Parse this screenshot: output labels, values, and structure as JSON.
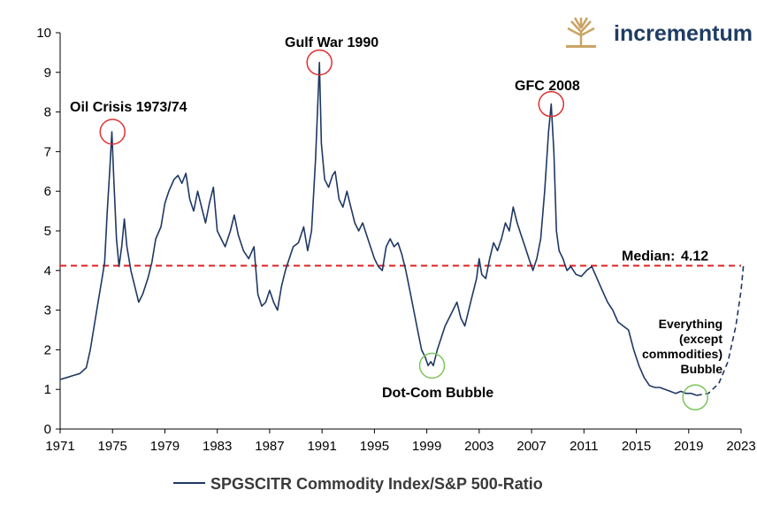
{
  "brand": {
    "name": "incrementum",
    "name_color": "#1f3c63",
    "logo_color": "#c9a464",
    "logo_icon": "tree-logo-icon"
  },
  "chart_data": {
    "type": "line",
    "title": "",
    "xlabel": "",
    "ylabel": "",
    "xlim": [
      1971,
      2023
    ],
    "ylim": [
      0,
      10
    ],
    "grid": false,
    "legend_position": "bottom",
    "x_ticks": [
      "1971",
      "1975",
      "1979",
      "1983",
      "1987",
      "1991",
      "1995",
      "1999",
      "2003",
      "2007",
      "2011",
      "2015",
      "2019",
      "2023"
    ],
    "y_ticks": [
      "0",
      "1",
      "2",
      "3",
      "4",
      "5",
      "6",
      "7",
      "8",
      "9",
      "10"
    ],
    "series": [
      {
        "name": "SPGSCITR Commodity Index/S&P 500-Ratio",
        "color": "#1f3864",
        "points": [
          [
            1971.0,
            1.25
          ],
          [
            1971.5,
            1.3
          ],
          [
            1972.0,
            1.35
          ],
          [
            1972.5,
            1.4
          ],
          [
            1973.0,
            1.55
          ],
          [
            1973.3,
            2.0
          ],
          [
            1973.6,
            2.6
          ],
          [
            1973.9,
            3.2
          ],
          [
            1974.2,
            3.8
          ],
          [
            1974.4,
            4.2
          ],
          [
            1974.6,
            5.5
          ],
          [
            1974.8,
            6.6
          ],
          [
            1974.95,
            7.5
          ],
          [
            1975.1,
            6.3
          ],
          [
            1975.3,
            4.8
          ],
          [
            1975.5,
            4.1
          ],
          [
            1975.7,
            4.6
          ],
          [
            1975.9,
            5.3
          ],
          [
            1976.1,
            4.6
          ],
          [
            1976.4,
            4.0
          ],
          [
            1976.7,
            3.6
          ],
          [
            1977.0,
            3.2
          ],
          [
            1977.3,
            3.4
          ],
          [
            1977.7,
            3.8
          ],
          [
            1978.0,
            4.2
          ],
          [
            1978.3,
            4.8
          ],
          [
            1978.7,
            5.1
          ],
          [
            1979.0,
            5.7
          ],
          [
            1979.3,
            6.0
          ],
          [
            1979.7,
            6.3
          ],
          [
            1980.0,
            6.4
          ],
          [
            1980.3,
            6.2
          ],
          [
            1980.6,
            6.45
          ],
          [
            1980.9,
            5.8
          ],
          [
            1981.2,
            5.5
          ],
          [
            1981.5,
            6.0
          ],
          [
            1981.8,
            5.6
          ],
          [
            1982.1,
            5.2
          ],
          [
            1982.4,
            5.7
          ],
          [
            1982.7,
            6.1
          ],
          [
            1983.0,
            5.0
          ],
          [
            1983.3,
            4.8
          ],
          [
            1983.6,
            4.6
          ],
          [
            1984.0,
            5.0
          ],
          [
            1984.3,
            5.4
          ],
          [
            1984.6,
            4.9
          ],
          [
            1985.0,
            4.5
          ],
          [
            1985.4,
            4.3
          ],
          [
            1985.8,
            4.6
          ],
          [
            1986.1,
            3.4
          ],
          [
            1986.4,
            3.1
          ],
          [
            1986.7,
            3.2
          ],
          [
            1987.0,
            3.5
          ],
          [
            1987.3,
            3.2
          ],
          [
            1987.6,
            3.0
          ],
          [
            1987.9,
            3.6
          ],
          [
            1988.2,
            4.0
          ],
          [
            1988.5,
            4.3
          ],
          [
            1988.8,
            4.6
          ],
          [
            1989.2,
            4.7
          ],
          [
            1989.6,
            5.1
          ],
          [
            1989.9,
            4.5
          ],
          [
            1990.2,
            5.0
          ],
          [
            1990.5,
            6.8
          ],
          [
            1990.7,
            8.4
          ],
          [
            1990.8,
            9.25
          ],
          [
            1990.95,
            7.2
          ],
          [
            1991.2,
            6.3
          ],
          [
            1991.5,
            6.1
          ],
          [
            1991.8,
            6.4
          ],
          [
            1992.0,
            6.5
          ],
          [
            1992.3,
            5.8
          ],
          [
            1992.6,
            5.6
          ],
          [
            1992.9,
            6.0
          ],
          [
            1993.2,
            5.6
          ],
          [
            1993.5,
            5.2
          ],
          [
            1993.8,
            5.0
          ],
          [
            1994.1,
            5.2
          ],
          [
            1994.4,
            4.9
          ],
          [
            1994.7,
            4.6
          ],
          [
            1995.0,
            4.3
          ],
          [
            1995.3,
            4.1
          ],
          [
            1995.6,
            4.0
          ],
          [
            1995.9,
            4.6
          ],
          [
            1996.2,
            4.8
          ],
          [
            1996.5,
            4.6
          ],
          [
            1996.8,
            4.7
          ],
          [
            1997.1,
            4.4
          ],
          [
            1997.4,
            4.0
          ],
          [
            1997.7,
            3.5
          ],
          [
            1998.0,
            3.0
          ],
          [
            1998.3,
            2.5
          ],
          [
            1998.6,
            2.0
          ],
          [
            1998.9,
            1.8
          ],
          [
            1999.1,
            1.6
          ],
          [
            1999.3,
            1.7
          ],
          [
            1999.5,
            1.6
          ],
          [
            1999.8,
            2.0
          ],
          [
            2000.1,
            2.3
          ],
          [
            2000.4,
            2.6
          ],
          [
            2000.7,
            2.8
          ],
          [
            2001.0,
            3.0
          ],
          [
            2001.3,
            3.2
          ],
          [
            2001.6,
            2.8
          ],
          [
            2001.9,
            2.6
          ],
          [
            2002.2,
            3.0
          ],
          [
            2002.5,
            3.4
          ],
          [
            2002.8,
            3.8
          ],
          [
            2003.0,
            4.3
          ],
          [
            2003.2,
            3.9
          ],
          [
            2003.5,
            3.8
          ],
          [
            2003.8,
            4.3
          ],
          [
            2004.1,
            4.7
          ],
          [
            2004.4,
            4.5
          ],
          [
            2004.7,
            4.8
          ],
          [
            2005.0,
            5.2
          ],
          [
            2005.3,
            5.0
          ],
          [
            2005.6,
            5.6
          ],
          [
            2005.9,
            5.2
          ],
          [
            2006.2,
            4.9
          ],
          [
            2006.5,
            4.6
          ],
          [
            2006.8,
            4.3
          ],
          [
            2007.1,
            4.0
          ],
          [
            2007.4,
            4.3
          ],
          [
            2007.7,
            4.8
          ],
          [
            2008.0,
            6.0
          ],
          [
            2008.3,
            7.5
          ],
          [
            2008.5,
            8.2
          ],
          [
            2008.7,
            7.0
          ],
          [
            2008.9,
            5.0
          ],
          [
            2009.1,
            4.5
          ],
          [
            2009.4,
            4.3
          ],
          [
            2009.7,
            4.0
          ],
          [
            2010.0,
            4.1
          ],
          [
            2010.4,
            3.9
          ],
          [
            2010.8,
            3.85
          ],
          [
            2011.2,
            4.0
          ],
          [
            2011.6,
            4.1
          ],
          [
            2012.0,
            3.8
          ],
          [
            2012.4,
            3.5
          ],
          [
            2012.8,
            3.2
          ],
          [
            2013.2,
            3.0
          ],
          [
            2013.6,
            2.7
          ],
          [
            2014.0,
            2.6
          ],
          [
            2014.4,
            2.5
          ],
          [
            2014.8,
            2.0
          ],
          [
            2015.2,
            1.6
          ],
          [
            2015.6,
            1.3
          ],
          [
            2016.0,
            1.1
          ],
          [
            2016.4,
            1.05
          ],
          [
            2016.8,
            1.05
          ],
          [
            2017.2,
            1.0
          ],
          [
            2017.6,
            0.95
          ],
          [
            2018.0,
            0.9
          ],
          [
            2018.4,
            0.95
          ],
          [
            2018.8,
            0.9
          ],
          [
            2019.2,
            0.9
          ],
          [
            2019.6,
            0.85
          ]
        ]
      }
    ],
    "projection": {
      "style": "dashed",
      "color": "#1f3864",
      "points": [
        [
          2019.6,
          0.85
        ],
        [
          2020.5,
          0.9
        ],
        [
          2021.3,
          1.15
        ],
        [
          2022.0,
          1.7
        ],
        [
          2022.6,
          2.6
        ],
        [
          2023.0,
          3.5
        ],
        [
          2023.2,
          4.2
        ]
      ]
    },
    "median": {
      "label": "Median:",
      "value": 4.12,
      "value_label": "4.12",
      "color": "#e02020",
      "style": "dashed"
    },
    "annotations": [
      {
        "id": "oil",
        "text": "Oil Crisis 1973/74",
        "marker_x": 1975.0,
        "marker_y": 7.5,
        "circle_color": "#e03030"
      },
      {
        "id": "gulf",
        "text": "Gulf War 1990",
        "marker_x": 1990.8,
        "marker_y": 9.25,
        "circle_color": "#e03030"
      },
      {
        "id": "gfc",
        "text": "GFC 2008",
        "marker_x": 2008.5,
        "marker_y": 8.2,
        "circle_color": "#e03030"
      },
      {
        "id": "dotcom",
        "text": "Dot-Com Bubble",
        "marker_x": 1999.4,
        "marker_y": 1.6,
        "circle_color": "#7dc55a"
      },
      {
        "id": "everything",
        "text_lines": [
          "Everything",
          "(except",
          "commodities)",
          "Bubble"
        ],
        "marker_x": 2019.5,
        "marker_y": 0.8,
        "circle_color": "#7dc55a"
      }
    ]
  }
}
